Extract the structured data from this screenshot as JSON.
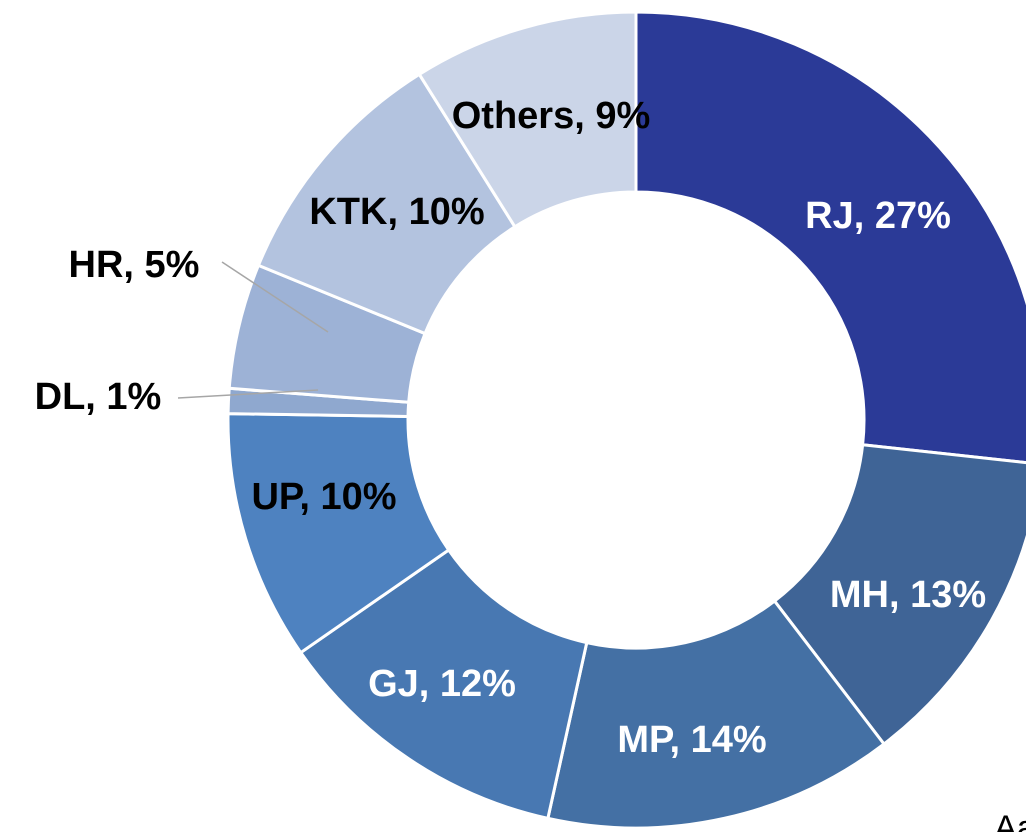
{
  "chart_data": {
    "type": "donut",
    "labels": [
      "RJ, 27%",
      "MH, 13%",
      "MP, 14%",
      "GJ, 12%",
      "UP, 10%",
      "DL, 1%",
      "HR, 5%",
      "KTK, 10%",
      "Others, 9%"
    ],
    "values": [
      27,
      13,
      14,
      12,
      10,
      1,
      5,
      10,
      9
    ],
    "colors": [
      "#2b3a97",
      "#3f6496",
      "#4470a4",
      "#4878b2",
      "#4e82c0",
      "#8fa8cf",
      "#9db2d6",
      "#b3c3df",
      "#cbd5e8"
    ],
    "footer_text": "Aa"
  }
}
